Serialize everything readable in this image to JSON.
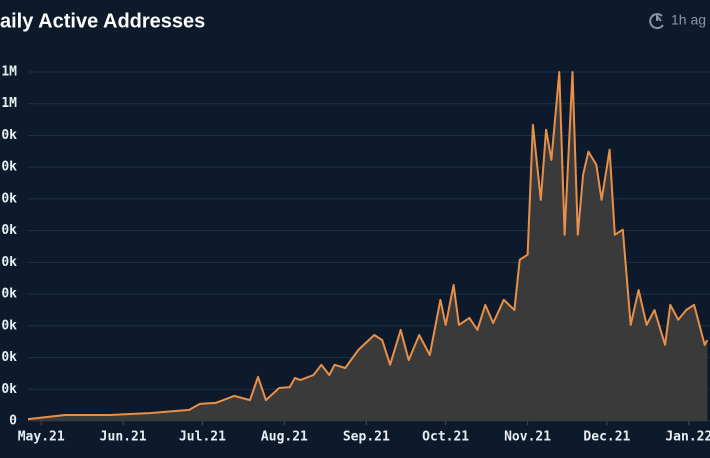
{
  "chart_data": {
    "type": "area",
    "title": "aily Active Addresses",
    "updated": "1h ag",
    "x": [
      -5,
      9,
      26,
      41,
      56,
      60,
      66,
      73,
      79,
      82,
      85,
      90,
      94,
      96,
      98,
      103,
      106,
      109,
      111,
      115,
      120,
      122,
      126,
      129,
      132,
      136,
      139,
      143,
      147,
      151,
      153,
      156,
      158,
      162,
      165,
      168,
      171,
      175,
      179,
      181,
      184,
      186,
      189,
      191,
      193,
      196,
      198,
      201,
      203,
      205,
      207,
      210,
      212,
      215,
      217,
      220,
      223,
      226,
      229,
      232,
      236,
      238,
      241,
      244,
      247,
      251,
      252
    ],
    "series": [
      {
        "name": "Daily Active Addresses",
        "color": "#e8904a",
        "fill": "#3b3a3a",
        "values": [
          6000,
          19000,
          19000,
          25000,
          35000,
          54000,
          57000,
          79000,
          66000,
          139000,
          66000,
          104000,
          107000,
          136000,
          129000,
          145000,
          177000,
          145000,
          177000,
          167000,
          224000,
          240000,
          271000,
          255000,
          177000,
          287000,
          192000,
          271000,
          208000,
          382000,
          303000,
          429000,
          303000,
          325000,
          287000,
          366000,
          309000,
          382000,
          350000,
          508000,
          524000,
          934000,
          697000,
          918000,
          823000,
          1100000,
          587000,
          1100000,
          587000,
          776000,
          849000,
          808000,
          697000,
          855000,
          587000,
          603000,
          303000,
          413000,
          303000,
          350000,
          240000,
          366000,
          319000,
          350000,
          366000,
          240000,
          255000
        ]
      }
    ],
    "xlim": [
      -5,
      253
    ],
    "xticks": [
      {
        "value": 0,
        "label": "May.21"
      },
      {
        "value": 31,
        "label": "Jun.21"
      },
      {
        "value": 61,
        "label": "Jul.21"
      },
      {
        "value": 92,
        "label": "Aug.21"
      },
      {
        "value": 123,
        "label": "Sep.21"
      },
      {
        "value": 153,
        "label": "Oct.21"
      },
      {
        "value": 184,
        "label": "Nov.21"
      },
      {
        "value": 214,
        "label": "Dec.21"
      },
      {
        "value": 245,
        "label": "Jan.22"
      }
    ],
    "ylim": [
      0,
      1100000
    ],
    "yticks": [
      0,
      {
        "value": 100000,
        "label": "0k"
      },
      {
        "value": 200000,
        "label": "0k"
      },
      {
        "value": 300000,
        "label": "0k"
      },
      {
        "value": 400000,
        "label": "0k"
      },
      {
        "value": 500000,
        "label": "0k"
      },
      {
        "value": 600000,
        "label": "0k"
      },
      {
        "value": 700000,
        "label": "0k"
      },
      {
        "value": 800000,
        "label": "0k"
      },
      {
        "value": 900000,
        "label": "0k"
      },
      {
        "value": 1000000,
        "label": "1M"
      },
      {
        "value": 1100000,
        "label": "1M"
      }
    ],
    "grid": true
  }
}
